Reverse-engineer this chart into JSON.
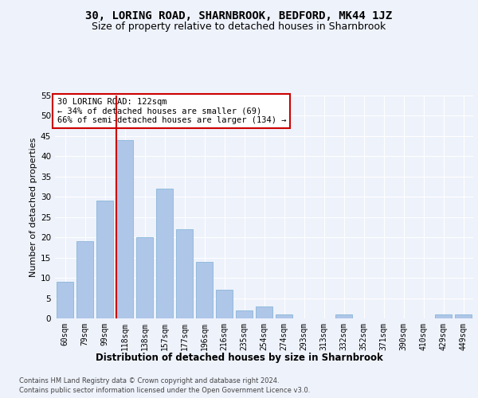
{
  "title": "30, LORING ROAD, SHARNBROOK, BEDFORD, MK44 1JZ",
  "subtitle": "Size of property relative to detached houses in Sharnbrook",
  "xlabel": "Distribution of detached houses by size in Sharnbrook",
  "ylabel": "Number of detached properties",
  "categories": [
    "60sqm",
    "79sqm",
    "99sqm",
    "118sqm",
    "138sqm",
    "157sqm",
    "177sqm",
    "196sqm",
    "216sqm",
    "235sqm",
    "254sqm",
    "274sqm",
    "293sqm",
    "313sqm",
    "332sqm",
    "352sqm",
    "371sqm",
    "390sqm",
    "410sqm",
    "429sqm",
    "449sqm"
  ],
  "values": [
    9,
    19,
    29,
    44,
    20,
    32,
    22,
    14,
    7,
    2,
    3,
    1,
    0,
    0,
    1,
    0,
    0,
    0,
    0,
    1,
    1
  ],
  "bar_color": "#aec6e8",
  "bar_edge_color": "#7aafd4",
  "vline_color": "#cc0000",
  "vline_x_index": 3,
  "annotation_text": "30 LORING ROAD: 122sqm\n← 34% of detached houses are smaller (69)\n66% of semi-detached houses are larger (134) →",
  "annotation_box_color": "#ffffff",
  "annotation_box_edge": "#cc0000",
  "ylim": [
    0,
    55
  ],
  "yticks": [
    0,
    5,
    10,
    15,
    20,
    25,
    30,
    35,
    40,
    45,
    50,
    55
  ],
  "footer_line1": "Contains HM Land Registry data © Crown copyright and database right 2024.",
  "footer_line2": "Contains public sector information licensed under the Open Government Licence v3.0.",
  "bg_color": "#eef2fb",
  "grid_color": "#ffffff",
  "title_fontsize": 10,
  "subtitle_fontsize": 9,
  "tick_fontsize": 7,
  "ylabel_fontsize": 8,
  "xlabel_fontsize": 8.5,
  "footer_fontsize": 6,
  "annotation_fontsize": 7.5
}
